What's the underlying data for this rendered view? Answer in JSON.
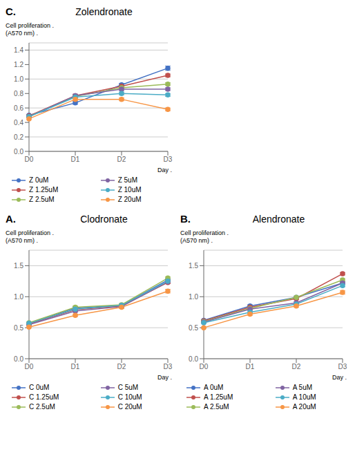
{
  "chart_data": [
    {
      "type": "line",
      "title": "Zolendronate",
      "annotations": [
        "C."
      ],
      "ylabel": [
        "Cell proliferation .",
        "(A570 nm) ."
      ],
      "xlabel": "Day .",
      "categories": [
        "D0",
        "D1",
        "D2",
        "D3"
      ],
      "series": [
        {
          "name": "Z 0uM",
          "color": "#4472C4",
          "values": [
            0.5,
            0.67,
            0.92,
            1.15
          ],
          "errors": [
            0.01,
            0.02,
            0.02,
            0.03
          ]
        },
        {
          "name": "Z 1.25uM",
          "color": "#C0504D",
          "values": [
            0.49,
            0.77,
            0.9,
            1.05
          ],
          "errors": [
            0.01,
            0.02,
            0.02,
            0.02
          ]
        },
        {
          "name": "Z 2.5uM",
          "color": "#9BBB59",
          "values": [
            0.48,
            0.76,
            0.88,
            0.93
          ],
          "errors": [
            0.01,
            0.02,
            0.02,
            0.02
          ]
        },
        {
          "name": "Z 5uM",
          "color": "#8064A2",
          "values": [
            0.48,
            0.77,
            0.86,
            0.86
          ],
          "errors": [
            0.01,
            0.02,
            0.02,
            0.02
          ]
        },
        {
          "name": "Z 10uM",
          "color": "#4BACC6",
          "values": [
            0.48,
            0.75,
            0.8,
            0.78
          ],
          "errors": [
            0.01,
            0.02,
            0.02,
            0.02
          ]
        },
        {
          "name": "Z 20uM",
          "color": "#F79646",
          "values": [
            0.45,
            0.72,
            0.72,
            0.58
          ],
          "errors": [
            0.01,
            0.02,
            0.02,
            0.02
          ]
        }
      ],
      "ylim": [
        0,
        1.5
      ],
      "yticks": [
        {
          "value": 0,
          "label": "0.0"
        },
        0.2,
        0.4,
        0.6,
        0.8,
        {
          "value": 1.0,
          "label": "1.0"
        },
        1.2,
        1.4
      ],
      "grid": true,
      "legend": "bottom"
    },
    {
      "type": "line",
      "title": "Clodronate",
      "annotations": [
        "A."
      ],
      "ylabel": [
        "Cell proliferation .",
        "(A570 nm) ."
      ],
      "xlabel": "Day .",
      "categories": [
        "D0",
        "D1",
        "D2",
        "D3"
      ],
      "series": [
        {
          "name": "C 0uM",
          "color": "#4472C4",
          "values": [
            0.57,
            0.82,
            0.86,
            1.27
          ],
          "errors": [
            0.01,
            0.02,
            0.02,
            0.02
          ]
        },
        {
          "name": "C 1.25uM",
          "color": "#C0504D",
          "values": [
            0.56,
            0.79,
            0.85,
            1.23
          ],
          "errors": [
            0.01,
            0.02,
            0.02,
            0.02
          ]
        },
        {
          "name": "C 2.5uM",
          "color": "#9BBB59",
          "values": [
            0.58,
            0.83,
            0.87,
            1.3
          ],
          "errors": [
            0.01,
            0.02,
            0.02,
            0.02
          ]
        },
        {
          "name": "C 5uM",
          "color": "#8064A2",
          "values": [
            0.55,
            0.77,
            0.84,
            1.24
          ],
          "errors": [
            0.01,
            0.02,
            0.02,
            0.02
          ]
        },
        {
          "name": "C 10uM",
          "color": "#4BACC6",
          "values": [
            0.57,
            0.8,
            0.86,
            1.25
          ],
          "errors": [
            0.01,
            0.02,
            0.02,
            0.02
          ]
        },
        {
          "name": "C 20uM",
          "color": "#F79646",
          "values": [
            0.51,
            0.7,
            0.83,
            1.09
          ],
          "errors": [
            0.01,
            0.02,
            0.02,
            0.03
          ]
        }
      ],
      "ylim": [
        0,
        1.75
      ],
      "yticks": [
        {
          "value": 0,
          "label": "0.0"
        },
        0.5,
        {
          "value": 1.0,
          "label": "1.0"
        },
        1.5
      ],
      "grid": true,
      "legend": "bottom"
    },
    {
      "type": "line",
      "title": "Alendronate",
      "annotations": [
        "B."
      ],
      "ylabel": [
        "Cell proliferation .",
        "(A570 nm) ."
      ],
      "xlabel": "Day .",
      "categories": [
        "D0",
        "D1",
        "D2",
        "D3"
      ],
      "series": [
        {
          "name": "A 0uM",
          "color": "#4472C4",
          "values": [
            0.62,
            0.85,
            0.99,
            1.22
          ],
          "errors": [
            0.01,
            0.02,
            0.02,
            0.02
          ]
        },
        {
          "name": "A 1.25uM",
          "color": "#C0504D",
          "values": [
            0.61,
            0.83,
            0.97,
            1.37
          ],
          "errors": [
            0.01,
            0.02,
            0.02,
            0.02
          ]
        },
        {
          "name": "A 2.5uM",
          "color": "#9BBB59",
          "values": [
            0.6,
            0.81,
            0.99,
            1.27
          ],
          "errors": [
            0.01,
            0.02,
            0.02,
            0.02
          ]
        },
        {
          "name": "A 5uM",
          "color": "#8064A2",
          "values": [
            0.59,
            0.8,
            0.9,
            1.22
          ],
          "errors": [
            0.01,
            0.02,
            0.02,
            0.02
          ]
        },
        {
          "name": "A 10uM",
          "color": "#4BACC6",
          "values": [
            0.58,
            0.75,
            0.88,
            1.18
          ],
          "errors": [
            0.01,
            0.02,
            0.02,
            0.02
          ]
        },
        {
          "name": "A 20uM",
          "color": "#F79646",
          "values": [
            0.5,
            0.72,
            0.85,
            1.07
          ],
          "errors": [
            0.01,
            0.02,
            0.02,
            0.03
          ]
        }
      ],
      "ylim": [
        0,
        1.75
      ],
      "yticks": [
        {
          "value": 0,
          "label": "0.0"
        },
        0.5,
        {
          "value": 1.0,
          "label": "1.0"
        },
        1.5
      ],
      "grid": true,
      "legend": "bottom"
    }
  ]
}
